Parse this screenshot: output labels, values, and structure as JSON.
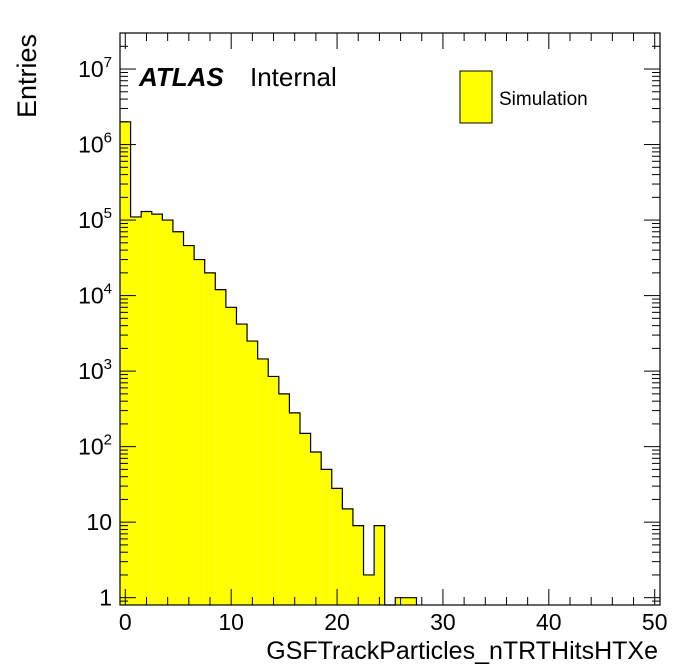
{
  "chart_data": {
    "type": "histogram",
    "xlabel": "GSFTrackParticles_nTRTHitsHTXe",
    "ylabel": "Entries",
    "x_ticks": [
      0,
      10,
      20,
      30,
      40,
      50
    ],
    "y_tick_labels": [
      {
        "value": 1,
        "base": "1",
        "exp": ""
      },
      {
        "value": 10,
        "base": "10",
        "exp": ""
      },
      {
        "value": 100,
        "base": "10",
        "exp": "2"
      },
      {
        "value": 1000,
        "base": "10",
        "exp": "3"
      },
      {
        "value": 10000,
        "base": "10",
        "exp": "4"
      },
      {
        "value": 100000,
        "base": "10",
        "exp": "5"
      },
      {
        "value": 1000000,
        "base": "10",
        "exp": "6"
      },
      {
        "value": 10000000,
        "base": "10",
        "exp": "7"
      }
    ],
    "xlim": [
      -0.5,
      50.5
    ],
    "ylim": [
      0.8,
      30000000
    ],
    "y_scale": "log",
    "bin_width": 1,
    "fill_color": "#ffff00",
    "line_color": "#000000",
    "bins": [
      {
        "x": 0,
        "y": 2000000
      },
      {
        "x": 1,
        "y": 110000
      },
      {
        "x": 2,
        "y": 130000
      },
      {
        "x": 3,
        "y": 120000
      },
      {
        "x": 4,
        "y": 100000
      },
      {
        "x": 5,
        "y": 70000
      },
      {
        "x": 6,
        "y": 46000
      },
      {
        "x": 7,
        "y": 30000
      },
      {
        "x": 8,
        "y": 20000
      },
      {
        "x": 9,
        "y": 12000
      },
      {
        "x": 10,
        "y": 7000
      },
      {
        "x": 11,
        "y": 4200
      },
      {
        "x": 12,
        "y": 2500
      },
      {
        "x": 13,
        "y": 1450
      },
      {
        "x": 14,
        "y": 850
      },
      {
        "x": 15,
        "y": 500
      },
      {
        "x": 16,
        "y": 280
      },
      {
        "x": 17,
        "y": 150
      },
      {
        "x": 18,
        "y": 85
      },
      {
        "x": 19,
        "y": 50
      },
      {
        "x": 20,
        "y": 28
      },
      {
        "x": 21,
        "y": 15
      },
      {
        "x": 22,
        "y": 9
      },
      {
        "x": 23,
        "y": 2
      },
      {
        "x": 24,
        "y": 9
      },
      {
        "x": 25,
        "y": 0
      },
      {
        "x": 26,
        "y": 1
      },
      {
        "x": 27,
        "y": 1
      }
    ],
    "legend": {
      "label": "Simulation",
      "position": "top-right"
    },
    "annotation": {
      "bold": "ATLAS",
      "normal": "Internal"
    }
  }
}
